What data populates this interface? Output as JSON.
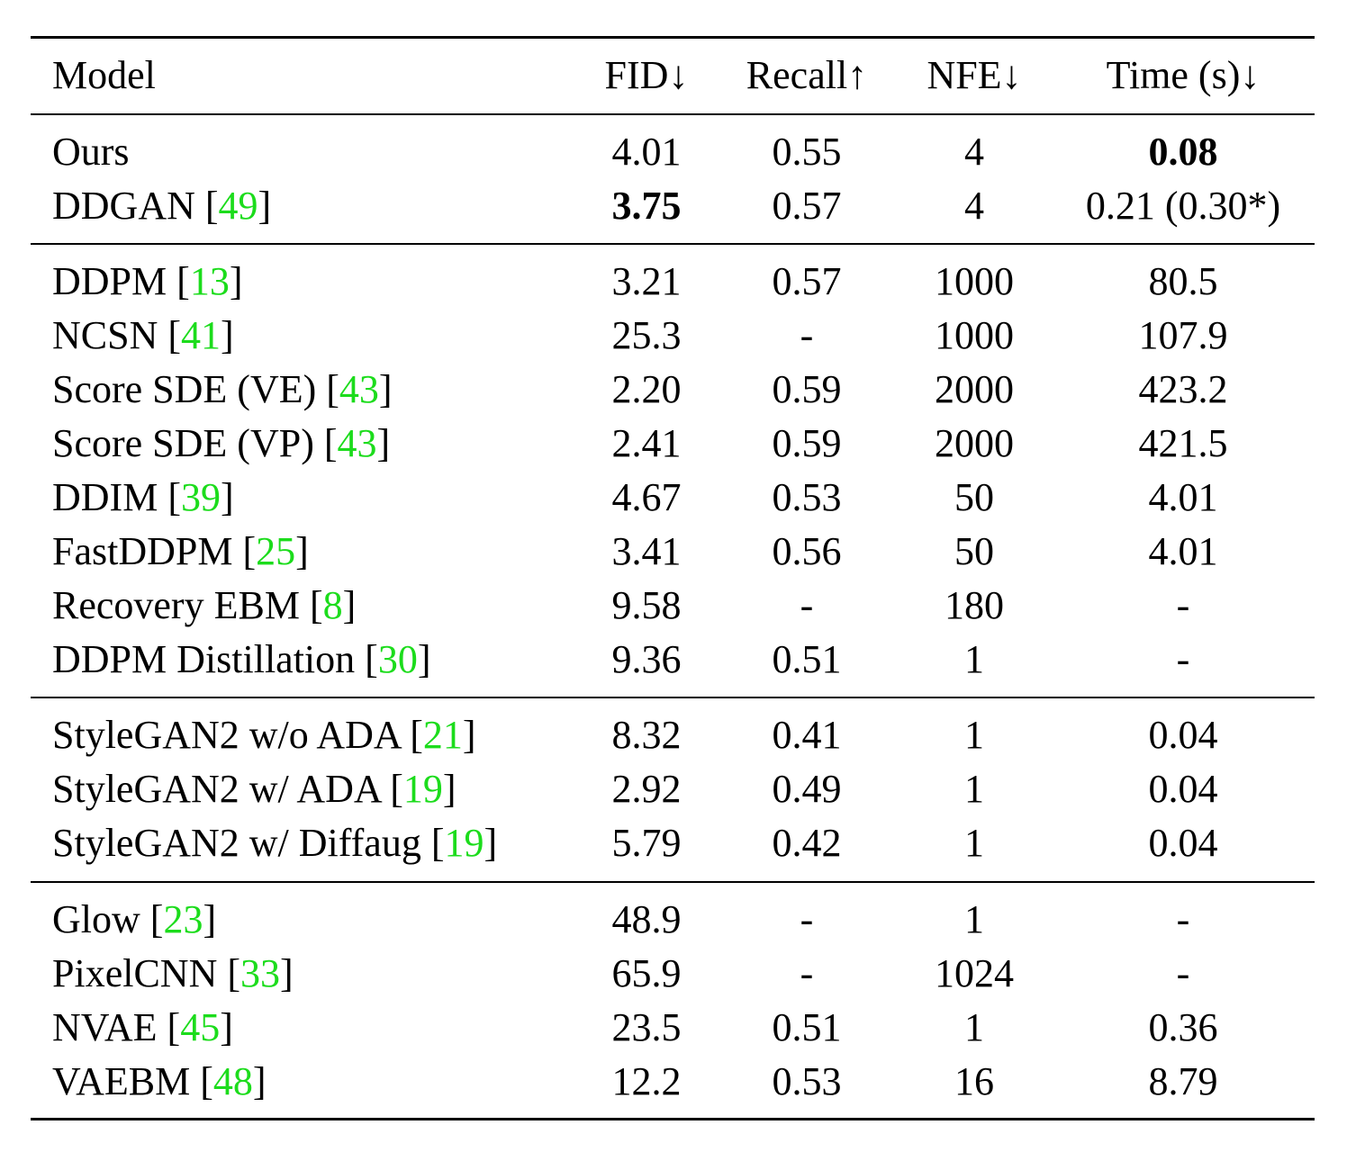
{
  "table": {
    "headers": {
      "model": "Model",
      "fid": "FID↓",
      "recall": "Recall↑",
      "nfe": "NFE↓",
      "time": "Time (s)↓"
    },
    "groups": [
      [
        {
          "name": "Ours",
          "ref": "",
          "fid": "4.01",
          "recall": "0.55",
          "nfe": "4",
          "time": "0.08",
          "bold": "time"
        },
        {
          "name": "DDGAN",
          "ref": "49",
          "fid": "3.75",
          "recall": "0.57",
          "nfe": "4",
          "time": "0.21 (0.30*)",
          "bold": "fid"
        }
      ],
      [
        {
          "name": "DDPM",
          "ref": "13",
          "fid": "3.21",
          "recall": "0.57",
          "nfe": "1000",
          "time": "80.5"
        },
        {
          "name": "NCSN",
          "ref": "41",
          "fid": "25.3",
          "recall": "-",
          "nfe": "1000",
          "time": "107.9"
        },
        {
          "name": "Score SDE (VE)",
          "ref": "43",
          "fid": "2.20",
          "recall": "0.59",
          "nfe": "2000",
          "time": "423.2"
        },
        {
          "name": "Score SDE (VP)",
          "ref": "43",
          "fid": "2.41",
          "recall": "0.59",
          "nfe": "2000",
          "time": "421.5"
        },
        {
          "name": "DDIM",
          "ref": "39",
          "fid": "4.67",
          "recall": "0.53",
          "nfe": "50",
          "time": "4.01"
        },
        {
          "name": "FastDDPM",
          "ref": "25",
          "fid": "3.41",
          "recall": "0.56",
          "nfe": "50",
          "time": "4.01"
        },
        {
          "name": "Recovery EBM",
          "ref": "8",
          "fid": "9.58",
          "recall": "-",
          "nfe": "180",
          "time": "-"
        },
        {
          "name": "DDPM Distillation",
          "ref": "30",
          "fid": "9.36",
          "recall": "0.51",
          "nfe": "1",
          "time": "-"
        }
      ],
      [
        {
          "name": "StyleGAN2 w/o ADA",
          "ref": "21",
          "fid": "8.32",
          "recall": "0.41",
          "nfe": "1",
          "time": "0.04"
        },
        {
          "name": "StyleGAN2 w/ ADA",
          "ref": "19",
          "fid": "2.92",
          "recall": "0.49",
          "nfe": "1",
          "time": "0.04"
        },
        {
          "name": "StyleGAN2 w/ Diffaug",
          "ref": "19",
          "fid": "5.79",
          "recall": "0.42",
          "nfe": "1",
          "time": "0.04"
        }
      ],
      [
        {
          "name": "Glow",
          "ref": "23",
          "fid": "48.9",
          "recall": "-",
          "nfe": "1",
          "time": "-"
        },
        {
          "name": "PixelCNN",
          "ref": "33",
          "fid": "65.9",
          "recall": "-",
          "nfe": "1024",
          "time": "-"
        },
        {
          "name": "NVAE",
          "ref": "45",
          "fid": "23.5",
          "recall": "0.51",
          "nfe": "1",
          "time": "0.36"
        },
        {
          "name": "VAEBM",
          "ref": "48",
          "fid": "12.2",
          "recall": "0.53",
          "nfe": "16",
          "time": "8.79"
        }
      ]
    ]
  },
  "colors": {
    "reference_link": "#1cdc1c",
    "text": "#000000",
    "background": "#ffffff"
  }
}
